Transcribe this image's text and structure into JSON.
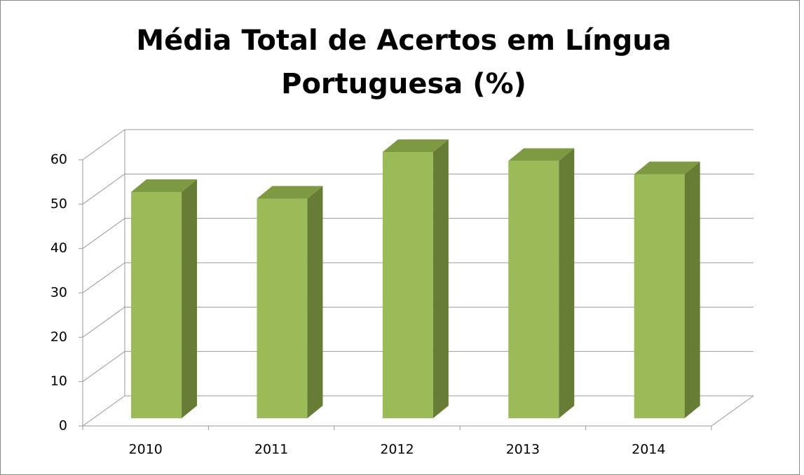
{
  "chart_data": {
    "type": "bar3d",
    "title": [
      "Média Total de Acertos em Língua",
      "Portuguesa (%)"
    ],
    "categories": [
      "2010",
      "2011",
      "2012",
      "2013",
      "2014"
    ],
    "values": [
      51,
      49.5,
      60,
      58,
      55
    ],
    "color": "#9bbb59",
    "ylim": [
      0,
      60
    ],
    "yticks": [
      0,
      10,
      20,
      30,
      40,
      50,
      60
    ],
    "grid": true
  }
}
